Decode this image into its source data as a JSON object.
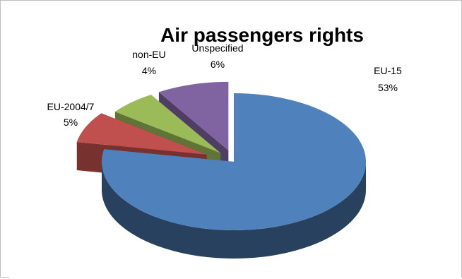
{
  "chart_data": {
    "type": "pie",
    "title": "Air passengers rights",
    "categories": [
      "EU-15",
      "EU-2004/7",
      "non-EU",
      "Unspecified"
    ],
    "values": [
      53,
      5,
      4,
      6
    ],
    "labels": [
      "53%",
      "5%",
      "4%",
      "6%"
    ],
    "colors": [
      "#4f81bd",
      "#c0504d",
      "#9bbb59",
      "#8064a2"
    ],
    "style": "3d-exploded",
    "legend": "none"
  }
}
